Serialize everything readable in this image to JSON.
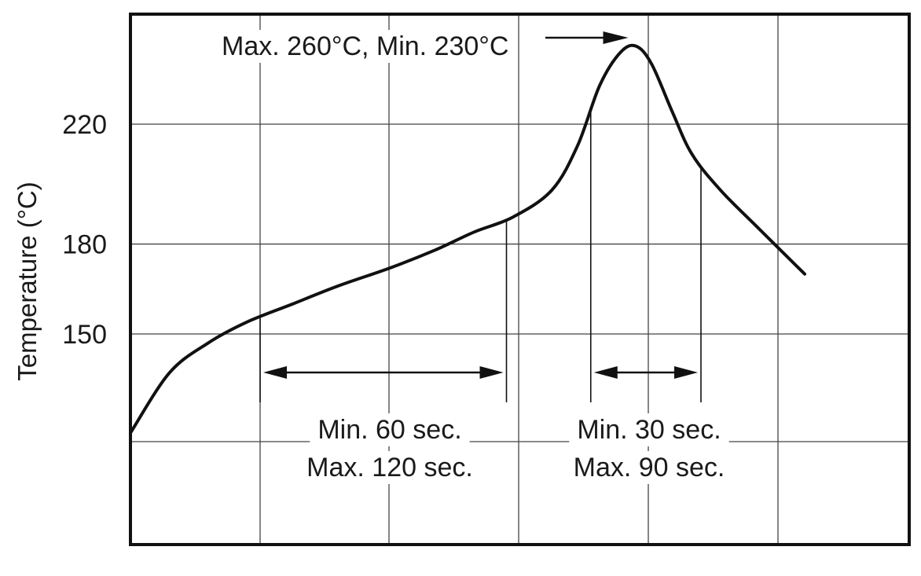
{
  "chart_data": {
    "type": "line",
    "title": "",
    "xlabel": "",
    "ylabel": "Temperature (°C)",
    "yticks": [
      150,
      180,
      220
    ],
    "grid": true,
    "x_gridlines": 5,
    "series": [
      {
        "values": [
          {
            "x": 0.0,
            "y": 117
          },
          {
            "x": 0.3,
            "y": 137
          },
          {
            "x": 0.6,
            "y": 147
          },
          {
            "x": 0.9,
            "y": 154
          },
          {
            "x": 1.25,
            "y": 160
          },
          {
            "x": 1.6,
            "y": 166
          },
          {
            "x": 2.0,
            "y": 172
          },
          {
            "x": 2.35,
            "y": 178
          },
          {
            "x": 2.65,
            "y": 184
          },
          {
            "x": 2.95,
            "y": 189
          },
          {
            "x": 3.25,
            "y": 198
          },
          {
            "x": 3.45,
            "y": 213
          },
          {
            "x": 3.62,
            "y": 233
          },
          {
            "x": 3.78,
            "y": 244
          },
          {
            "x": 3.9,
            "y": 246
          },
          {
            "x": 4.02,
            "y": 240
          },
          {
            "x": 4.18,
            "y": 224
          },
          {
            "x": 4.33,
            "y": 210
          },
          {
            "x": 4.55,
            "y": 198
          },
          {
            "x": 4.85,
            "y": 185
          },
          {
            "x": 5.2,
            "y": 170
          }
        ]
      }
    ],
    "annotations": {
      "peak_label": "Max. 260°C, Min. 230°C",
      "soak_line1": "Min. 60 sec.",
      "soak_line2": "Max. 120 sec.",
      "reflow_line1": "Min. 30 sec.",
      "reflow_line2": "Max. 90 sec."
    },
    "soak_window": {
      "x_start": 1.0,
      "x_end": 2.9
    },
    "reflow_window": {
      "x_start": 3.55,
      "x_end": 4.4
    }
  }
}
